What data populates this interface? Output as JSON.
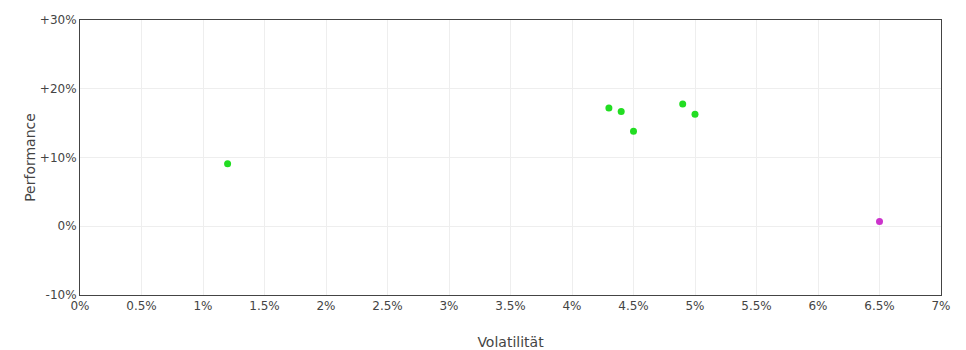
{
  "chart_data": {
    "type": "scatter",
    "xlabel": "Volatilität",
    "ylabel": "Performance",
    "xlim": [
      0.0,
      0.07
    ],
    "ylim": [
      -0.1,
      0.3
    ],
    "xticks": [
      {
        "value": 0.0,
        "label": "0%"
      },
      {
        "value": 0.005,
        "label": "0.5%"
      },
      {
        "value": 0.01,
        "label": "1%"
      },
      {
        "value": 0.015,
        "label": "1.5%"
      },
      {
        "value": 0.02,
        "label": "2%"
      },
      {
        "value": 0.025,
        "label": "2.5%"
      },
      {
        "value": 0.03,
        "label": "3%"
      },
      {
        "value": 0.035,
        "label": "3.5%"
      },
      {
        "value": 0.04,
        "label": "4%"
      },
      {
        "value": 0.045,
        "label": "4.5%"
      },
      {
        "value": 0.05,
        "label": "5%"
      },
      {
        "value": 0.055,
        "label": "5.5%"
      },
      {
        "value": 0.06,
        "label": "6%"
      },
      {
        "value": 0.065,
        "label": "6.5%"
      },
      {
        "value": 0.07,
        "label": "7%"
      }
    ],
    "yticks": [
      {
        "value": -0.1,
        "label": "-10%"
      },
      {
        "value": 0.0,
        "label": "0%"
      },
      {
        "value": 0.1,
        "label": "+10%"
      },
      {
        "value": 0.2,
        "label": "+20%"
      },
      {
        "value": 0.3,
        "label": "+30%"
      }
    ],
    "grid": true,
    "series": [
      {
        "color": "#22dd22",
        "x": [
          0.012,
          0.043,
          0.044,
          0.045,
          0.049,
          0.05
        ],
        "values": [
          0.091,
          0.172,
          0.167,
          0.138,
          0.178,
          0.163
        ]
      },
      {
        "color": "#cc33cc",
        "x": [
          0.065
        ],
        "values": [
          0.007
        ]
      }
    ]
  }
}
